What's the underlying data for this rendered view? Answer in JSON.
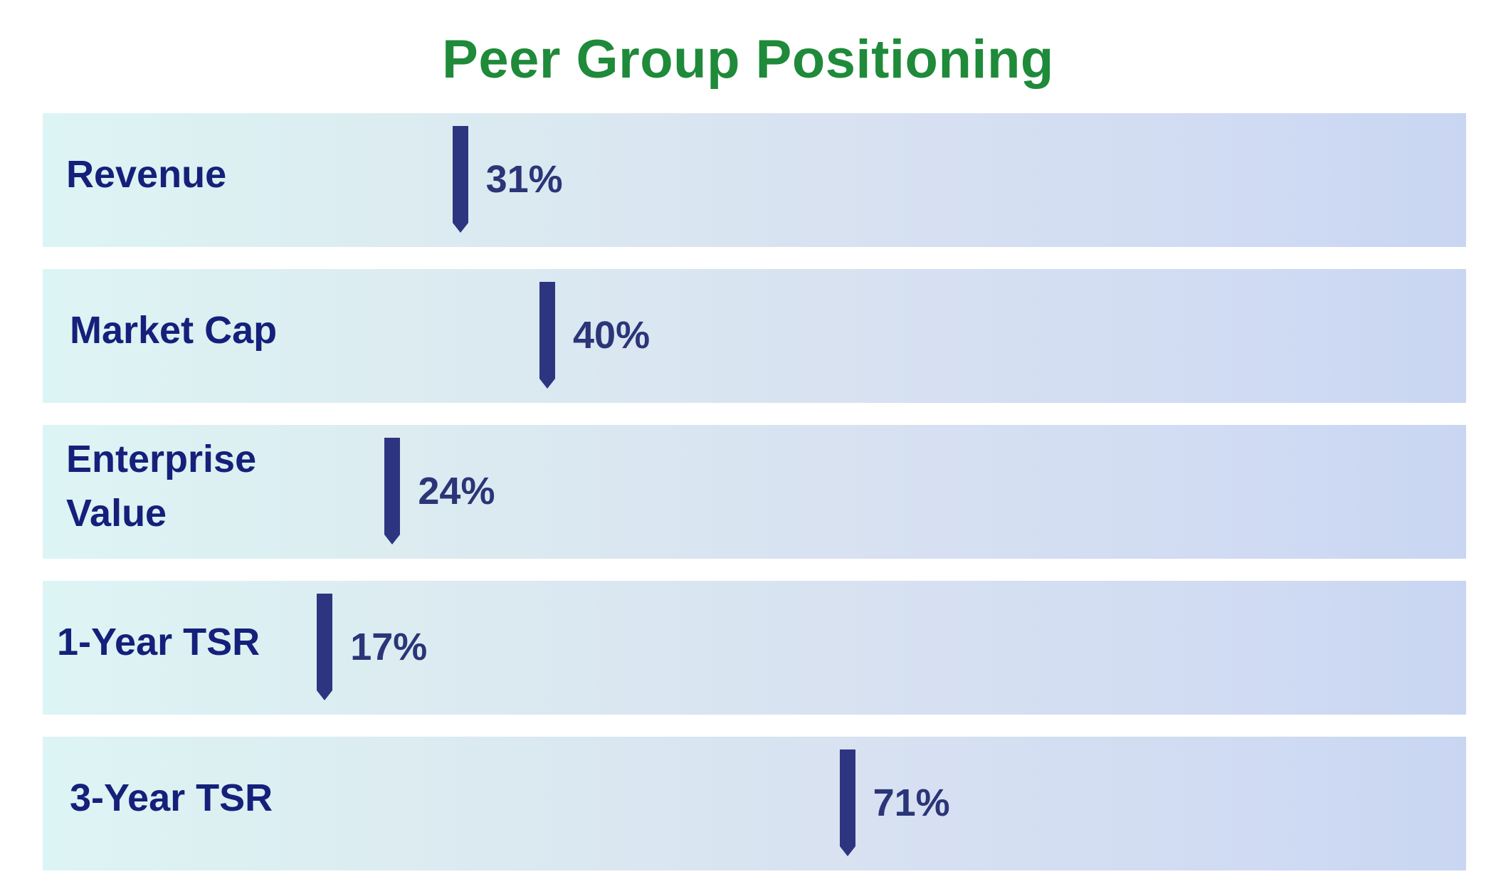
{
  "title": "Peer Group Positioning",
  "colors": {
    "title": "#1e8a3a",
    "label": "#14207a",
    "marker": "#2e3580",
    "value": "#2b3577"
  },
  "chart_data": {
    "type": "bar",
    "title": "Peer Group Positioning",
    "categories": [
      "Revenue",
      "Market Cap",
      "Enterprise Value",
      "1-Year TSR",
      "3-Year TSR"
    ],
    "category_lines": [
      [
        "Revenue"
      ],
      [
        "Market Cap"
      ],
      [
        "Enterprise",
        "Value"
      ],
      [
        "1-Year TSR"
      ],
      [
        "3-Year TSR"
      ]
    ],
    "values": [
      31,
      40,
      24,
      17,
      71
    ],
    "value_labels": [
      "31%",
      "40%",
      "24%",
      "17%",
      "71%"
    ],
    "unit": "%",
    "xlim": [
      0,
      100
    ],
    "grid": false,
    "legend": "none"
  }
}
